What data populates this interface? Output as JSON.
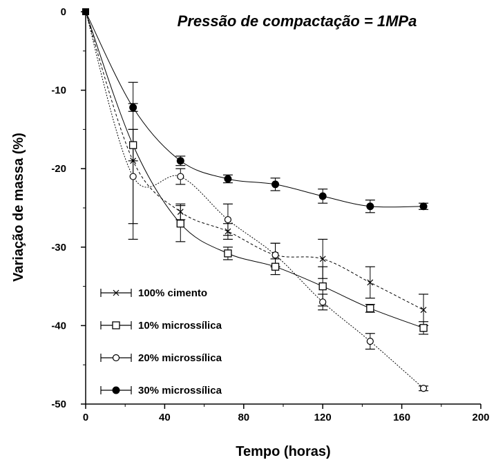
{
  "chart_data": {
    "type": "scatter",
    "title": "Pressão de compactação = 1MPa",
    "xlabel": "Tempo (horas)",
    "ylabel": "Variação de massa (%)",
    "xlim": [
      0,
      200
    ],
    "ylim": [
      -50,
      0
    ],
    "xticks": [
      "0",
      "40",
      "80",
      "120",
      "160",
      "200"
    ],
    "yticks": [
      "0",
      "-10",
      "-20",
      "-30",
      "-40",
      "-50"
    ],
    "grid": false,
    "legend_position": "bottom-left",
    "series": [
      {
        "name": "100% cimento",
        "marker": "cross",
        "x": [
          0,
          24,
          48,
          72,
          96,
          120,
          144,
          171
        ],
        "y": [
          0,
          -19,
          -25.5,
          -28,
          -31,
          -31.5,
          -34.5,
          -38
        ],
        "yerr": [
          0,
          10,
          1,
          1,
          1.5,
          2.5,
          2,
          2
        ]
      },
      {
        "name": "10% microssílica",
        "marker": "square-open",
        "x": [
          0,
          24,
          48,
          72,
          96,
          120,
          144,
          171
        ],
        "y": [
          0,
          -17,
          -27,
          -30.8,
          -32.5,
          -35,
          -37.8,
          -40.3
        ],
        "yerr": [
          0,
          2,
          2.3,
          0.8,
          1,
          2.5,
          0.5,
          0.8
        ]
      },
      {
        "name": "20% microssílica",
        "marker": "circle-open",
        "x": [
          0,
          24,
          48,
          72,
          96,
          120,
          144,
          171
        ],
        "y": [
          0,
          -21,
          -21,
          -26.5,
          -31,
          -37,
          -42,
          -48
        ],
        "yerr": [
          0,
          6,
          1,
          2,
          1.5,
          1,
          1,
          0.3
        ]
      },
      {
        "name": "30% microssílica",
        "marker": "circle-filled",
        "x": [
          0,
          24,
          48,
          72,
          96,
          120,
          144,
          171
        ],
        "y": [
          0,
          -12.2,
          -19,
          -21.3,
          -22,
          -23.5,
          -24.8,
          -24.8
        ],
        "yerr": [
          0,
          0.5,
          0.6,
          0.5,
          0.8,
          0.9,
          0.8,
          0.4
        ]
      }
    ]
  }
}
